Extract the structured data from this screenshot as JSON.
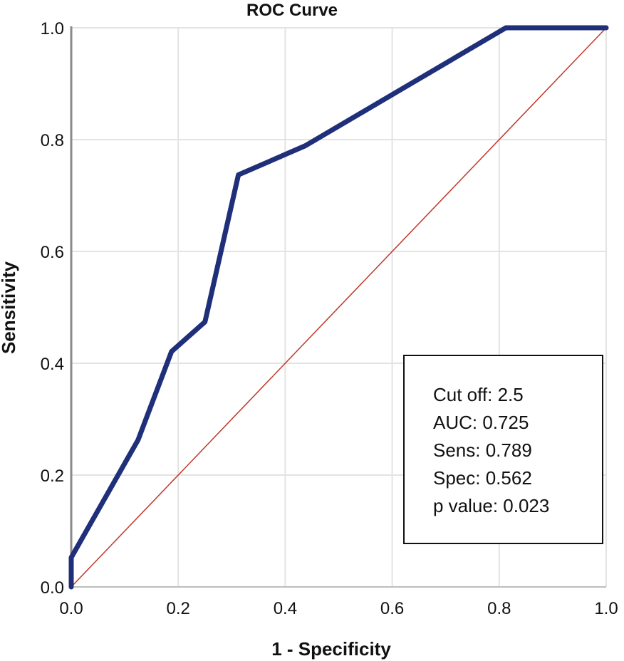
{
  "chart_data": {
    "type": "line",
    "title": "ROC Curve",
    "xlabel": "1 - Specificity",
    "ylabel": "Sensitivity",
    "xlim": [
      0,
      1
    ],
    "ylim": [
      0,
      1
    ],
    "xticks": [
      "0.0",
      "0.2",
      "0.4",
      "0.6",
      "0.8",
      "1.0"
    ],
    "yticks": [
      "0.0",
      "0.2",
      "0.4",
      "0.6",
      "0.8",
      "1.0"
    ],
    "grid": true,
    "series": [
      {
        "color": "#1f2f7a",
        "x": [
          0.0,
          0.0,
          0.125,
          0.1875,
          0.25,
          0.3125,
          0.4375,
          0.8125,
          1.0
        ],
        "y": [
          0.0,
          0.0526,
          0.263,
          0.421,
          0.474,
          0.737,
          0.789,
          1.0,
          1.0
        ]
      },
      {
        "color": "#c0392b",
        "x": [
          0,
          1
        ],
        "y": [
          0,
          1
        ]
      }
    ],
    "annotation": {
      "lines": [
        "Cut off: 2.5",
        "AUC: 0.725",
        "Sens: 0.789",
        "Spec: 0.562",
        "p value: 0.023"
      ]
    }
  }
}
